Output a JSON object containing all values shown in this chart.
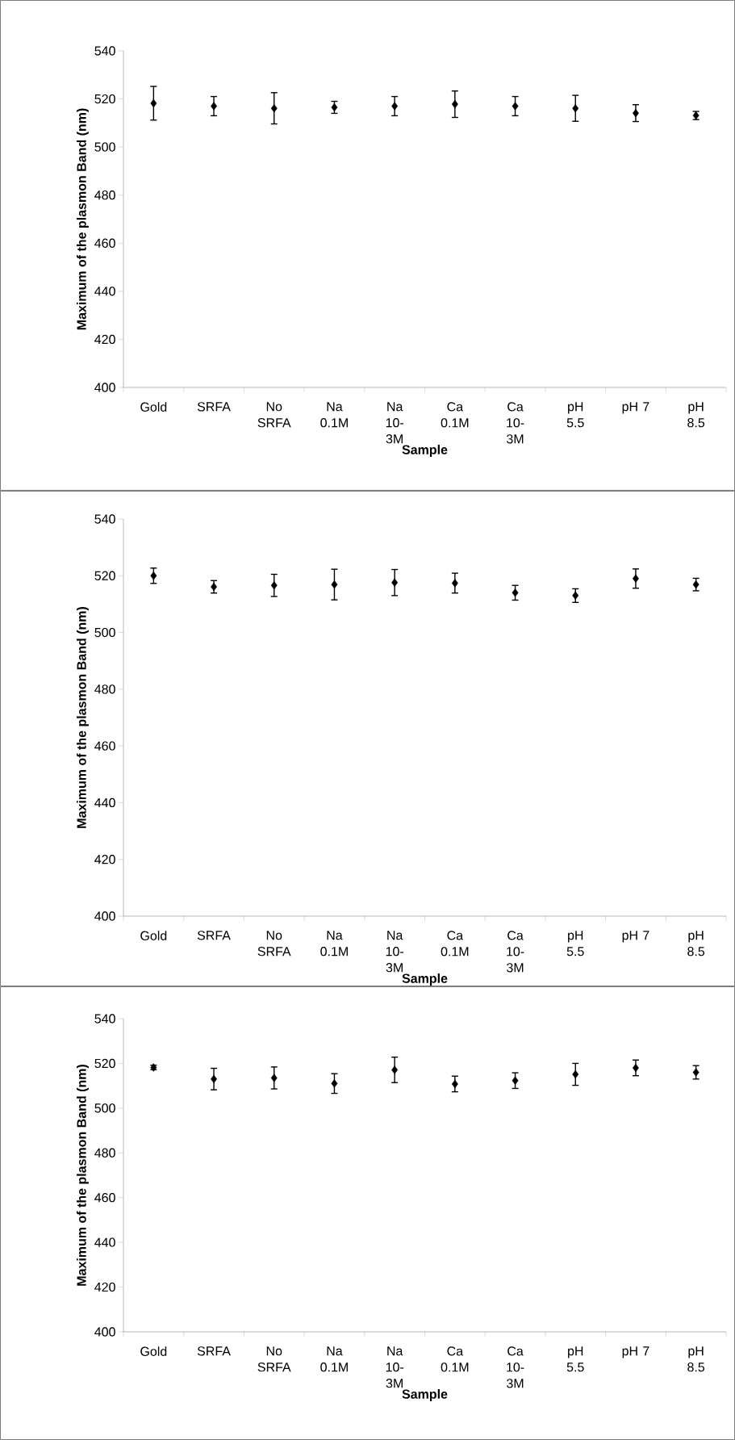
{
  "chart_data": [
    {
      "type": "scatter",
      "xlabel": "Sample",
      "ylabel": "Maximum of the plasmon Band (nm)",
      "categories": [
        "Gold",
        "SRFA",
        "No SRFA",
        "Na 0.1M",
        "Na 10-3M",
        "Ca 0.1M",
        "Ca 10-3M",
        "pH 5.5",
        "pH 7",
        "pH 8.5"
      ],
      "values": [
        518.2,
        517,
        516.1,
        516.5,
        517,
        517.8,
        517,
        516.1,
        514.1,
        513.1
      ],
      "errors": [
        7,
        4,
        6.5,
        2.5,
        4,
        5.5,
        4,
        5.4,
        3.5,
        1.7
      ],
      "color": "#000000",
      "marker": "diamond",
      "ylim": [
        400,
        540
      ],
      "yticks": [
        400,
        420,
        440,
        460,
        480,
        500,
        520,
        540
      ]
    },
    {
      "type": "scatter",
      "xlabel": "Sample",
      "ylabel": "Maximum of the plasmon Band (nm)",
      "categories": [
        "Gold",
        "SRFA",
        "No SRFA",
        "Na 0.1M",
        "Na 10-3M",
        "Ca 0.1M",
        "Ca 10-3M",
        "pH 5.5",
        "pH 7",
        "pH 8.5"
      ],
      "values": [
        520,
        516.1,
        516.6,
        516.9,
        517.6,
        517.4,
        514,
        513,
        519,
        516.9
      ],
      "errors": [
        2.7,
        2.2,
        3.9,
        5.4,
        4.6,
        3.5,
        2.6,
        2.4,
        3.4,
        2.2
      ],
      "color": "#000000",
      "marker": "diamond",
      "ylim": [
        400,
        540
      ],
      "yticks": [
        400,
        420,
        440,
        460,
        480,
        500,
        520,
        540
      ]
    },
    {
      "type": "scatter",
      "xlabel": "Sample",
      "ylabel": "Maximum of the plasmon Band (nm)",
      "categories": [
        "Gold",
        "SRFA",
        "No SRFA",
        "Na 0.1M",
        "Na 10-3M",
        "Ca 0.1M",
        "Ca 10-3M",
        "pH 5.5",
        "pH 7",
        "pH 8.5"
      ],
      "values": [
        518.2,
        513,
        513.5,
        511,
        517.1,
        510.8,
        512.3,
        515.1,
        518,
        516
      ],
      "errors": [
        1,
        4.8,
        4.9,
        4.4,
        5.7,
        3.5,
        3.5,
        4.9,
        3.5,
        3
      ],
      "color": "#000000",
      "marker": "diamond",
      "ylim": [
        400,
        540
      ],
      "yticks": [
        400,
        420,
        440,
        460,
        480,
        500,
        520,
        540
      ]
    }
  ]
}
